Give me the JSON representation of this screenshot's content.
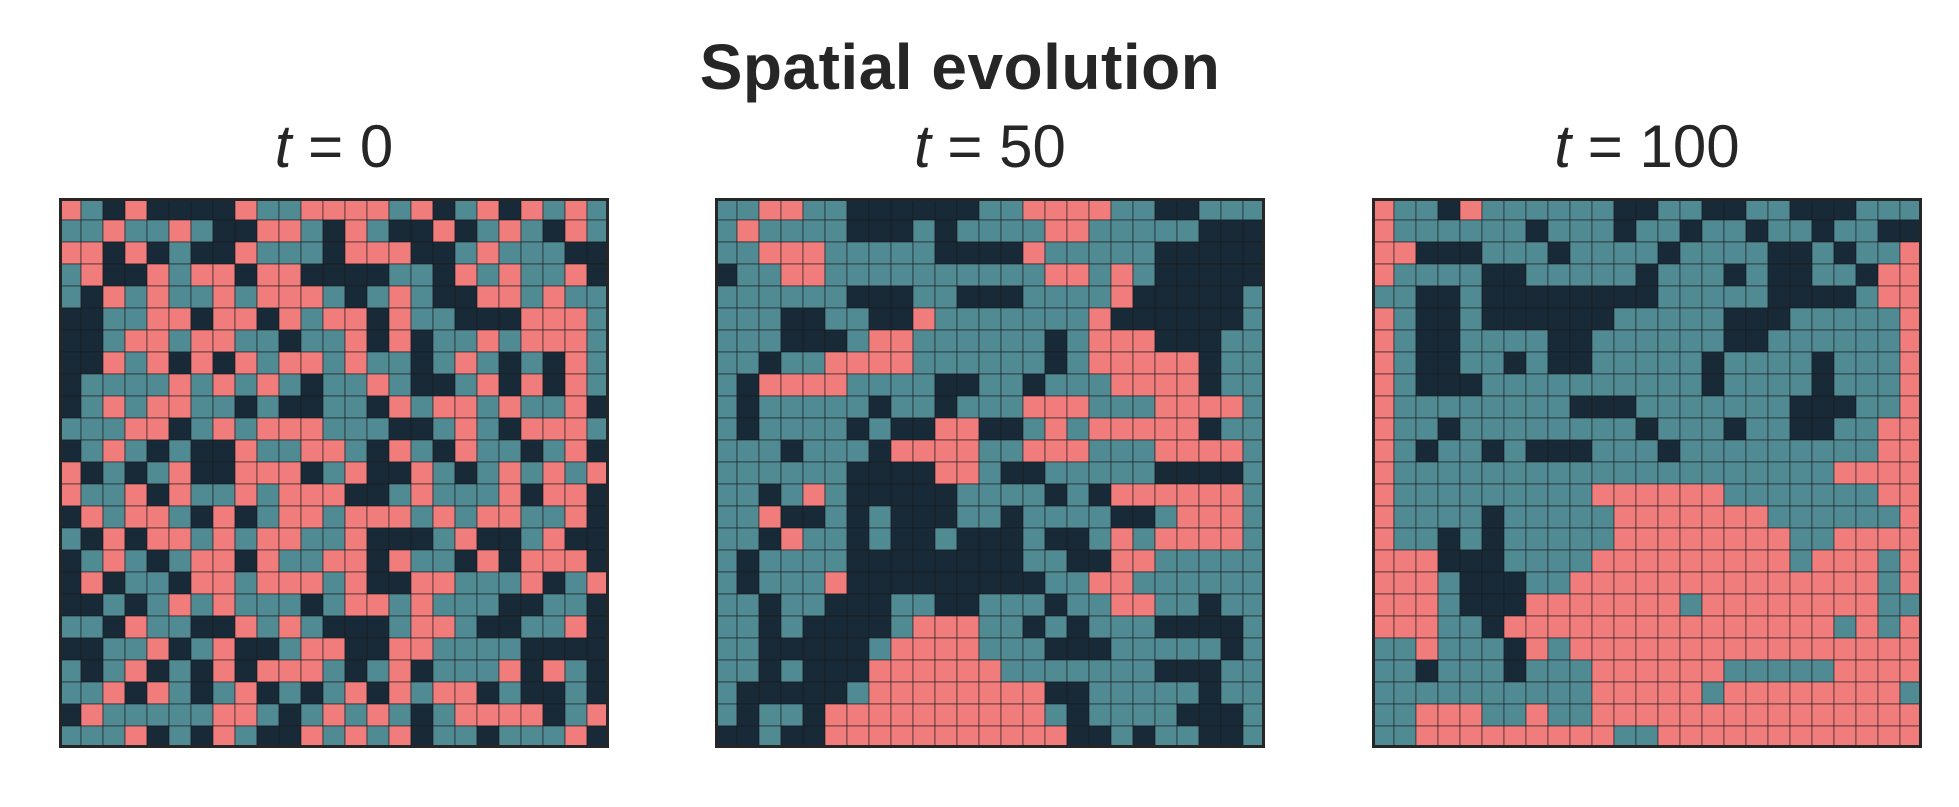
{
  "title": "Spatial evolution",
  "colors": {
    "state0": "#182938",
    "state1": "#508a93",
    "state2": "#f07c7c",
    "gridline": "#1a1a1a",
    "frame": "#262626"
  },
  "chart_data": {
    "type": "heatmap",
    "grid_size": 25,
    "legend": "none",
    "category_colors": [
      "#182938",
      "#508a93",
      "#f07c7c"
    ],
    "panels": [
      {
        "title_var": "t",
        "title_rest": " = 0",
        "rows": [
          "2102000021122221201202121",
          "1121121002210210020121021",
          "2202010021110222001211100",
          "1200212202200001102121120",
          "1021211212221012100221211",
          "0011220220212202110002221",
          "0012212211011202011212221",
          "0021202021221211012101021",
          "0111121212101121001202021",
          "0121221101001102122121120",
          "1112201212221110012102221",
          "0121010021122102102110120",
          "2010120022201200210121212",
          "2112021121222001211120220",
          "0212210201221222121221120",
          "1020221212211200012001200",
          "0121012202112202110202220",
          "0201102212221200221112012",
          "0010121211101221211100110",
          "1102110021210001221001120",
          "0011201200122002211110000",
          "1012010202221012011120210",
          "1120210120101202122010010",
          "0211111221012121012222012",
          "1112010210021212011011120"
        ]
      },
      {
        "title_var": "t",
        "title_rest": " = 50",
        "rows": [
          "1122110000001122221100111",
          "1211110001011112211111000",
          "1122211111000021111100000",
          "0112211111111112212100000",
          "1111110001100011112000001",
          "1110011002111111120000001",
          "1110001221111110122200011",
          "1101122221111110122222011",
          "1022221111001101112222011",
          "1011111011011122211122221",
          "1011110100220012122222011",
          "1110111022221122211122221",
          "1111110000221001111100001",
          "1101210000011110102222221",
          "1120010100011011110012221",
          "1102110100100010012122221",
          "1011110000000011002211111",
          "1011120000000001122111111",
          "1101100011001110112211011",
          "1101000012221101011100001",
          "1100000122221110001111101",
          "1101000222222111111100011",
          "1000001222222220011111011",
          "1011022222222221011110001",
          "0010022222222222001011001"
        ]
      },
      {
        "title_var": "t",
        "title_rest": " = 100",
        "rows": [
          "2110211111100110011000111",
          "2111111011101101101101100",
          "2200011101111011110010112",
          "2111100111110111010011022",
          "1100100000000111110000122",
          "2100100000011111000111112",
          "2100111100111111001111112",
          "2100110100111110111101112",
          "2100011111111110111101112",
          "2111111110001111111000112",
          "2110111111110111011001122",
          "2101101000111011111111122",
          "2111111111111111111112222",
          "2111111111222222111111122",
          "2111101111122222221111112",
          "2110101111122222222112222",
          "2220001111222222222122212",
          "2221000112222222222222212",
          "2221000222222212222222211",
          "2221102222222222222221212",
          "1121110212222222222222222",
          "1101110111222222111112222",
          "1111111111222221222222221",
          "1122211211222222222222222",
          "1122222222211222222222222"
        ]
      }
    ]
  }
}
